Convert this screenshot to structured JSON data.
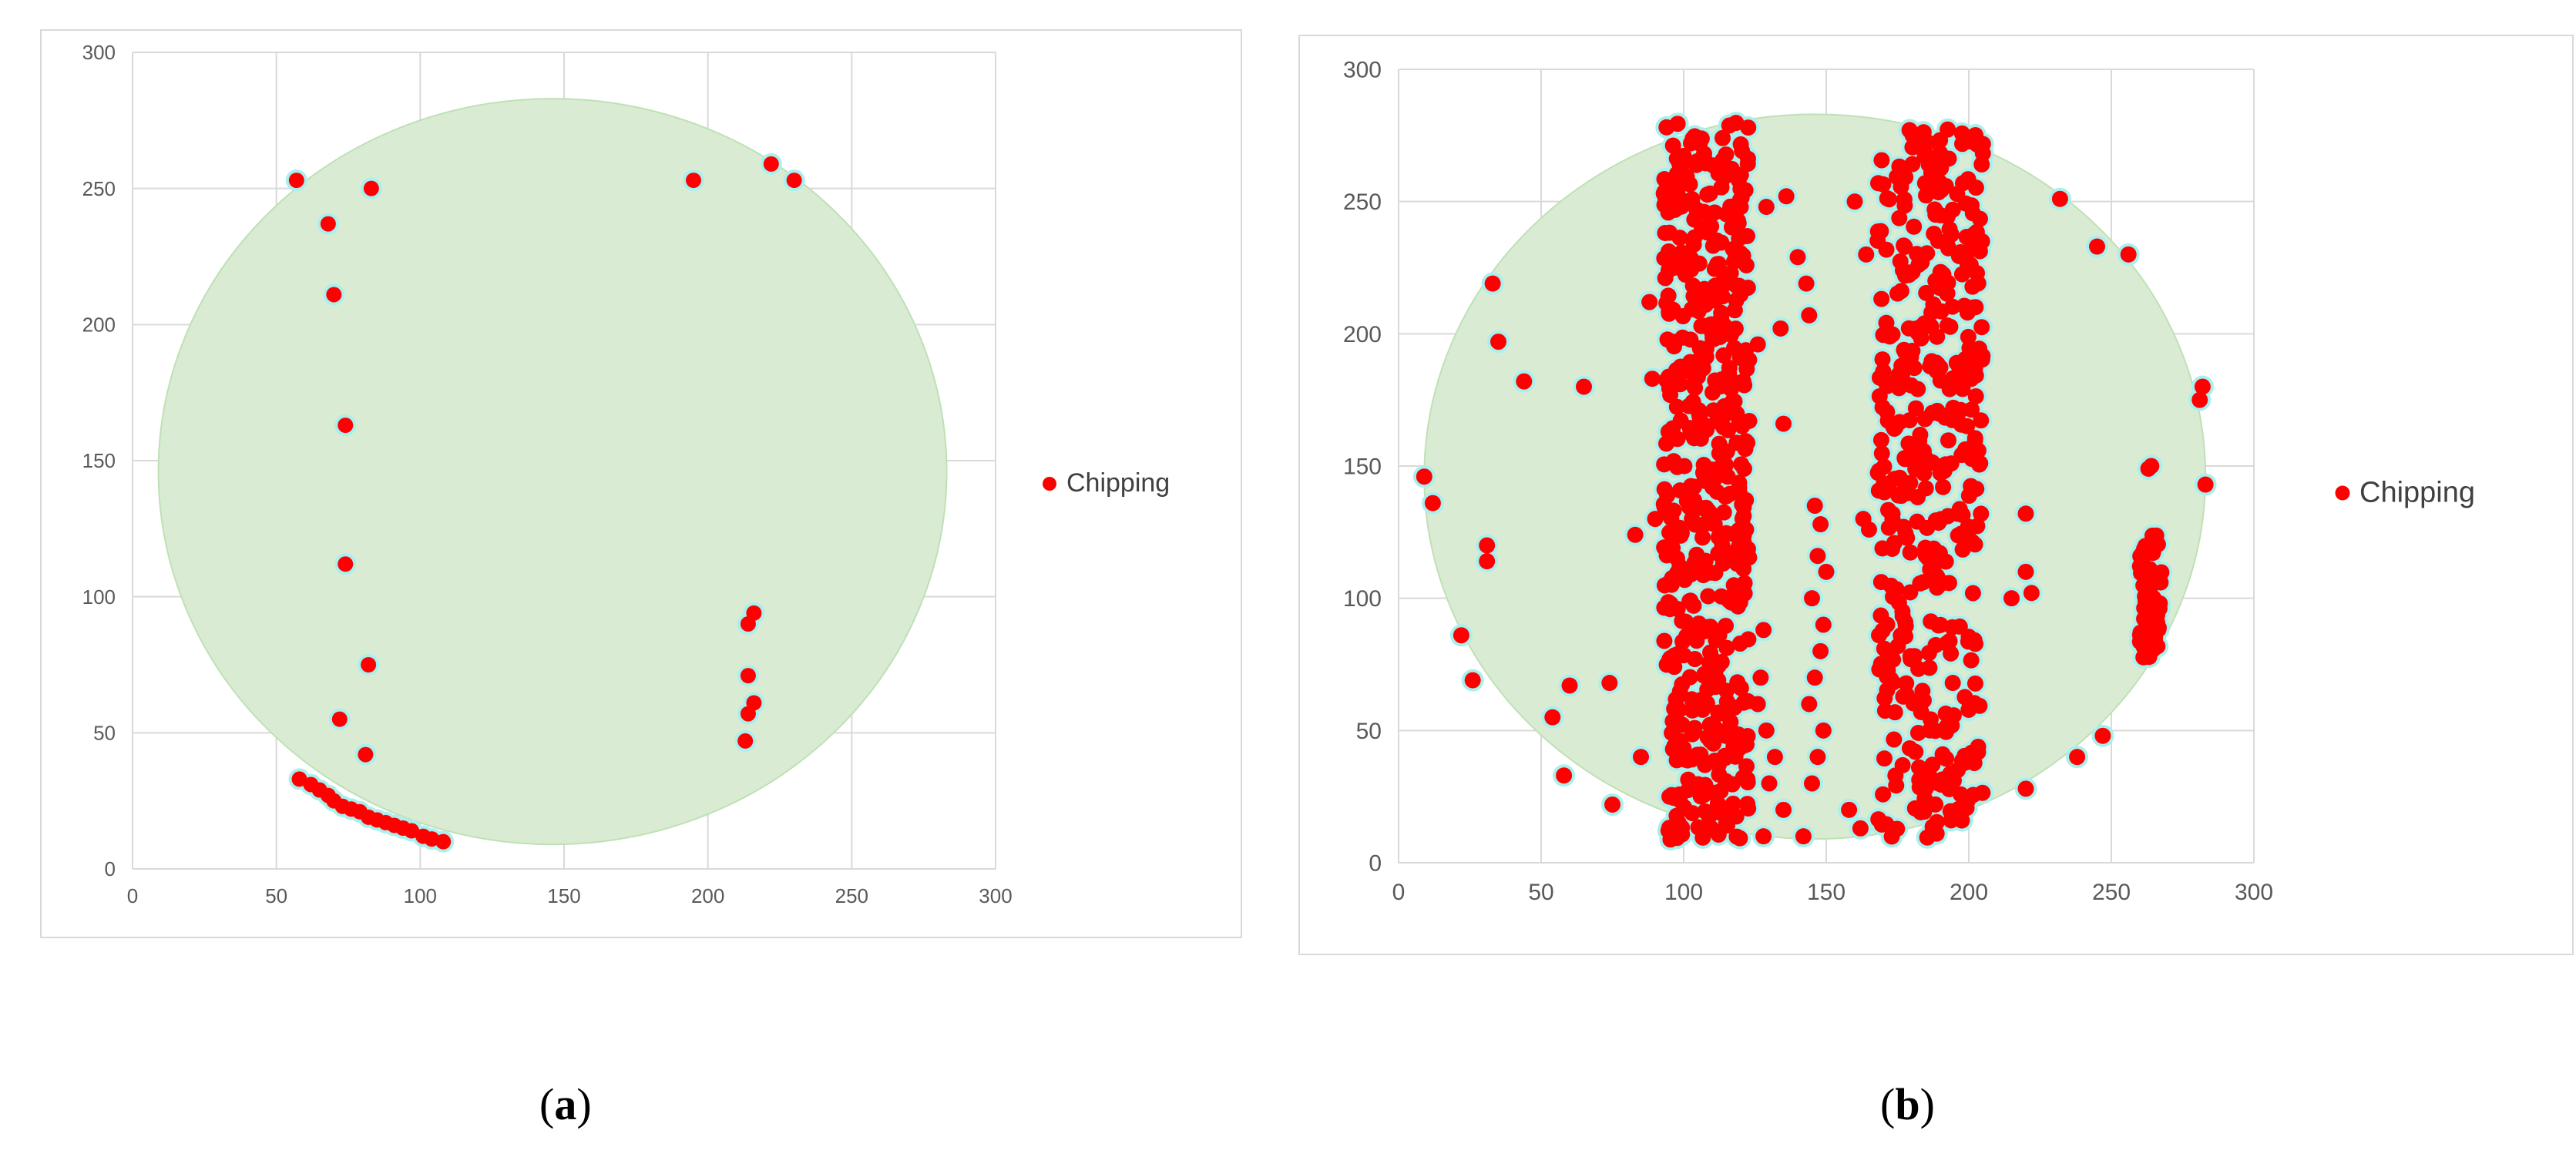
{
  "chart_data": [
    {
      "type": "scatter",
      "panel": "a",
      "caption_letter": "a",
      "xlim": [
        0,
        300
      ],
      "ylim": [
        0,
        300
      ],
      "xticks": [
        0,
        50,
        100,
        150,
        200,
        250,
        300
      ],
      "yticks": [
        0,
        50,
        100,
        150,
        200,
        250,
        300
      ],
      "grid": true,
      "legend_position": "right",
      "wafer_color": "#d9ecd3",
      "point_color": "#ff0000",
      "point_halo": "#a8f0ee",
      "series": [
        {
          "name": "Chipping",
          "points": [
            [
              57,
              253
            ],
            [
              68,
              237
            ],
            [
              70,
              211
            ],
            [
              74,
              163
            ],
            [
              74,
              112
            ],
            [
              72,
              55
            ],
            [
              82,
              75
            ],
            [
              81,
              42
            ],
            [
              83,
              250
            ],
            [
              195,
              253
            ],
            [
              222,
              259
            ],
            [
              230,
              253
            ],
            [
              216,
              94
            ],
            [
              214,
              90
            ],
            [
              214,
              71
            ],
            [
              216,
              61
            ],
            [
              214,
              57
            ],
            [
              213,
              47
            ],
            [
              58,
              33
            ],
            [
              62,
              31
            ],
            [
              65,
              29
            ],
            [
              68,
              27
            ],
            [
              70,
              25
            ],
            [
              73,
              23
            ],
            [
              76,
              22
            ],
            [
              79,
              21
            ],
            [
              82,
              19
            ],
            [
              85,
              18
            ],
            [
              88,
              17
            ],
            [
              91,
              16
            ],
            [
              94,
              15
            ],
            [
              97,
              14
            ],
            [
              101,
              12
            ],
            [
              104,
              11
            ],
            [
              108,
              10
            ]
          ]
        }
      ]
    },
    {
      "type": "scatter",
      "panel": "b",
      "caption_letter": "b",
      "xlim": [
        0,
        300
      ],
      "ylim": [
        0,
        300
      ],
      "xticks": [
        0,
        50,
        100,
        150,
        200,
        250,
        300
      ],
      "yticks": [
        0,
        50,
        100,
        150,
        200,
        250,
        300
      ],
      "grid": true,
      "legend_position": "right",
      "wafer_color": "#d9ecd3",
      "point_color": "#ff0000",
      "point_halo": "#a8f0ee",
      "series": [
        {
          "name": "Chipping",
          "points": [
            [
              33,
              219
            ],
            [
              35,
              197
            ],
            [
              44,
              182
            ],
            [
              65,
              180
            ],
            [
              31,
              120
            ],
            [
              31,
              114
            ],
            [
              9,
              146
            ],
            [
              12,
              136
            ],
            [
              22,
              86
            ],
            [
              26,
              69
            ],
            [
              54,
              55
            ],
            [
              60,
              67
            ],
            [
              58,
              33
            ],
            [
              74,
              68
            ],
            [
              75,
              22
            ],
            [
              83,
              124
            ],
            [
              85,
              40
            ],
            [
              88,
              212
            ],
            [
              89,
              183
            ],
            [
              90,
              130
            ],
            [
              95,
              25
            ],
            [
              129,
              248
            ],
            [
              136,
              252
            ],
            [
              135,
              166
            ],
            [
              140,
              229
            ],
            [
              143,
              219
            ],
            [
              144,
              207
            ],
            [
              134,
              202
            ],
            [
              126,
              196
            ],
            [
              128,
              88
            ],
            [
              127,
              70
            ],
            [
              126,
              60
            ],
            [
              129,
              50
            ],
            [
              132,
              40
            ],
            [
              130,
              30
            ],
            [
              135,
              20
            ],
            [
              142,
              10
            ],
            [
              128,
              10
            ],
            [
              146,
              135
            ],
            [
              148,
              128
            ],
            [
              147,
              116
            ],
            [
              150,
              110
            ],
            [
              145,
              100
            ],
            [
              149,
              90
            ],
            [
              148,
              80
            ],
            [
              146,
              70
            ],
            [
              144,
              60
            ],
            [
              149,
              50
            ],
            [
              147,
              40
            ],
            [
              145,
              30
            ],
            [
              160,
              250
            ],
            [
              158,
              20
            ],
            [
              162,
              13
            ],
            [
              164,
              230
            ],
            [
              163,
              130
            ],
            [
              165,
              126
            ],
            [
              220,
              132
            ],
            [
              215,
              100
            ],
            [
              220,
              110
            ],
            [
              222,
              102
            ],
            [
              220,
              28
            ],
            [
              232,
              251
            ],
            [
              238,
              40
            ],
            [
              245,
              233
            ],
            [
              247,
              48
            ],
            [
              256,
              230
            ],
            [
              281,
              175
            ],
            [
              282,
              180
            ],
            [
              283,
              143
            ],
            [
              263,
              149
            ],
            [
              264,
              150
            ]
          ],
          "bands": [
            {
              "x_min": 93,
              "x_max": 123,
              "y_min": 8,
              "y_max": 280,
              "count": 520
            },
            {
              "x_min": 168,
              "x_max": 205,
              "y_min": 8,
              "y_max": 278,
              "count": 430
            },
            {
              "x_min": 260,
              "x_max": 268,
              "y_min": 75,
              "y_max": 125,
              "count": 60
            }
          ]
        }
      ]
    }
  ],
  "panel_a": {
    "caption_letter": "a",
    "legend_label": "Chipping"
  },
  "panel_b": {
    "caption_letter": "b",
    "legend_label": "Chipping"
  }
}
